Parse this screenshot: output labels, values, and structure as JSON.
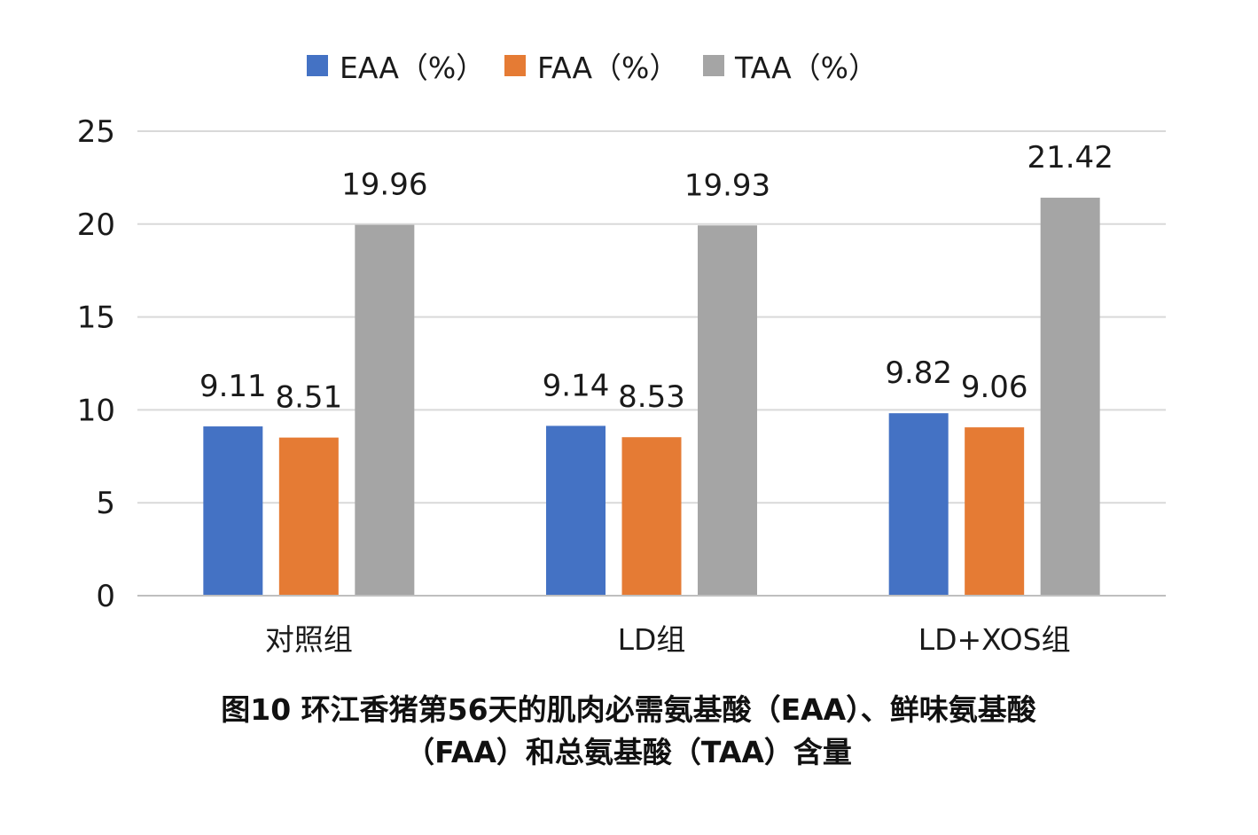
{
  "chart_data": {
    "type": "bar",
    "categories": [
      "对照组",
      "LD组",
      "LD+XOS组"
    ],
    "series": [
      {
        "name": "EAA（%）",
        "values": [
          9.11,
          9.14,
          9.82
        ],
        "color": "#4472C4"
      },
      {
        "name": "FAA（%）",
        "values": [
          8.51,
          8.53,
          9.06
        ],
        "color": "#E57B34"
      },
      {
        "name": "TAA（%）",
        "values": [
          19.96,
          19.93,
          21.42
        ],
        "color": "#A5A5A5"
      }
    ],
    "ylim": [
      0,
      25
    ],
    "yticks": [
      0,
      5,
      10,
      15,
      20,
      25
    ],
    "grid": true,
    "legend": "top",
    "data_labels": true
  },
  "caption": {
    "lines": [
      "图10 环江香猪第56天的肌肉必需氨基酸（EAA）、鲜味氨基酸",
      "（FAA）和总氨基酸（TAA）含量"
    ]
  },
  "colors": {
    "gridline": "#D9D9D9",
    "axis": "#BFBFBF"
  }
}
